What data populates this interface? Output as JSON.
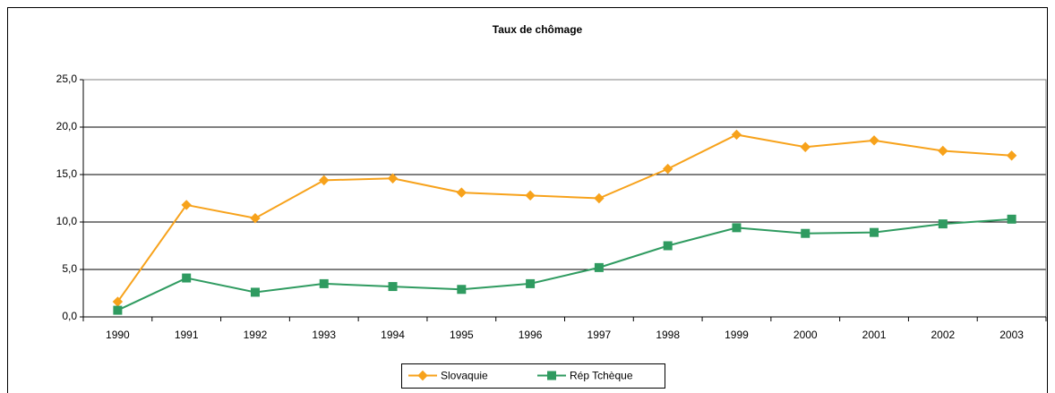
{
  "chart_data": {
    "type": "line",
    "title": "Taux de chômage",
    "categories": [
      "1990",
      "1991",
      "1992",
      "1993",
      "1994",
      "1995",
      "1996",
      "1997",
      "1998",
      "1999",
      "2000",
      "2001",
      "2002",
      "2003"
    ],
    "series": [
      {
        "name": "Slovaquie",
        "color": "#f7a21b",
        "marker": "diamond",
        "values": [
          1.6,
          11.8,
          10.4,
          14.4,
          14.6,
          13.1,
          12.8,
          12.5,
          15.6,
          19.2,
          17.9,
          18.6,
          17.5,
          17.0
        ]
      },
      {
        "name": "Rép Tchèque",
        "color": "#2f9b60",
        "marker": "square",
        "values": [
          0.7,
          4.1,
          2.6,
          3.5,
          3.2,
          2.9,
          3.5,
          5.2,
          7.5,
          9.4,
          8.8,
          8.9,
          9.8,
          10.3
        ]
      }
    ],
    "ylim": [
      0,
      25
    ],
    "yticks": [
      {
        "value": 0,
        "label": "0,0"
      },
      {
        "value": 5,
        "label": "5,0"
      },
      {
        "value": 10,
        "label": "10,0"
      },
      {
        "value": 15,
        "label": "15,0"
      },
      {
        "value": 20,
        "label": "20,0"
      },
      {
        "value": 25,
        "label": "25,0"
      }
    ],
    "grid": true,
    "legend": "bottom"
  }
}
